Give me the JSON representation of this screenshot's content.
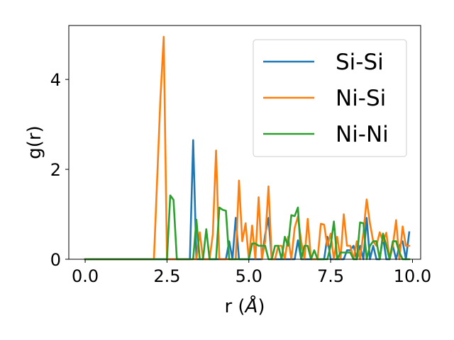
{
  "chart_data": {
    "type": "line",
    "xlabel": "r (Å)",
    "ylabel": "g(r)",
    "xlim": [
      -0.5,
      10.25
    ],
    "ylim": [
      0,
      5.2
    ],
    "xticks": [
      0.0,
      2.5,
      5.0,
      7.5,
      10.0
    ],
    "xtick_labels": [
      "0.0",
      "2.5",
      "5.0",
      "7.5",
      "10.0"
    ],
    "yticks": [
      0,
      2,
      4
    ],
    "ytick_labels": [
      "0",
      "2",
      "4"
    ],
    "grid": false,
    "legend_position": "top-right",
    "series": [
      {
        "name": "Si-Si",
        "color": "#1f77b4",
        "x": [
          0.0,
          3.0,
          3.1,
          3.2,
          3.3,
          3.4,
          3.5,
          3.6,
          4.3,
          4.4,
          4.5,
          4.6,
          4.7,
          5.4,
          5.5,
          5.6,
          5.7,
          5.8,
          6.4,
          6.5,
          6.6,
          6.7,
          6.8,
          7.3,
          7.4,
          7.5,
          7.6,
          7.7,
          7.8,
          7.9,
          8.0,
          8.1,
          8.2,
          8.3,
          8.4,
          8.5,
          8.6,
          8.7,
          8.8,
          8.9,
          9.0,
          9.1,
          9.2,
          9.3,
          9.4,
          9.5,
          9.6,
          9.7,
          9.8,
          9.9
        ],
        "y": [
          0.0,
          0.0,
          0.0,
          0.0,
          2.65,
          0.0,
          0.0,
          0.0,
          0.0,
          0.4,
          0.0,
          0.92,
          0.0,
          0.0,
          0.55,
          0.92,
          0.0,
          0.0,
          0.0,
          0.42,
          0.0,
          0.0,
          0.0,
          0.0,
          0.5,
          0.0,
          0.0,
          0.0,
          0.0,
          0.0,
          0.2,
          0.2,
          0.3,
          0.0,
          0.3,
          0.0,
          0.92,
          0.0,
          0.3,
          0.0,
          0.0,
          0.5,
          0.0,
          0.0,
          0.3,
          0.0,
          0.3,
          0.4,
          0.0,
          0.6
        ]
      },
      {
        "name": "Ni-Si",
        "color": "#ff7f0e",
        "x": [
          0.0,
          2.1,
          2.2,
          2.3,
          2.4,
          2.5,
          2.6,
          2.7,
          2.8,
          2.9,
          3.0,
          3.1,
          3.2,
          3.3,
          3.4,
          3.5,
          3.6,
          3.7,
          3.8,
          3.9,
          4.0,
          4.1,
          4.2,
          4.3,
          4.4,
          4.5,
          4.6,
          4.7,
          4.8,
          4.9,
          5.0,
          5.1,
          5.2,
          5.3,
          5.4,
          5.5,
          5.6,
          5.7,
          5.8,
          5.9,
          6.0,
          6.1,
          6.2,
          6.3,
          6.4,
          6.5,
          6.6,
          6.7,
          6.8,
          6.9,
          7.0,
          7.1,
          7.2,
          7.3,
          7.4,
          7.5,
          7.6,
          7.7,
          7.8,
          7.9,
          8.0,
          8.1,
          8.2,
          8.3,
          8.4,
          8.5,
          8.6,
          8.7,
          8.8,
          8.9,
          9.0,
          9.1,
          9.2,
          9.3,
          9.4,
          9.5,
          9.6,
          9.7,
          9.8,
          9.9
        ],
        "y": [
          0.0,
          0.0,
          1.8,
          3.6,
          4.95,
          0.0,
          0.0,
          0.0,
          0.0,
          0.0,
          0.0,
          0.0,
          0.0,
          0.0,
          0.0,
          0.6,
          0.0,
          0.0,
          0.0,
          0.55,
          2.42,
          0.0,
          0.0,
          0.0,
          0.0,
          0.0,
          0.0,
          1.75,
          0.4,
          0.8,
          0.0,
          0.75,
          0.0,
          1.38,
          0.0,
          0.4,
          1.62,
          0.0,
          0.0,
          0.3,
          0.3,
          0.0,
          0.5,
          0.0,
          0.7,
          0.95,
          0.4,
          0.0,
          0.9,
          0.0,
          0.0,
          0.0,
          0.79,
          0.77,
          0.3,
          0.57,
          0.0,
          0.5,
          0.0,
          1.0,
          0.3,
          0.3,
          0.0,
          0.4,
          0.0,
          0.6,
          1.33,
          0.8,
          0.4,
          0.3,
          0.6,
          0.4,
          0.59,
          0.0,
          0.3,
          0.87,
          0.0,
          0.73,
          0.3,
          0.3
        ]
      },
      {
        "name": "Ni-Ni",
        "color": "#2ca02c",
        "x": [
          0.0,
          2.5,
          2.6,
          2.7,
          2.8,
          2.9,
          3.0,
          3.1,
          3.2,
          3.3,
          3.4,
          3.5,
          3.6,
          3.7,
          3.8,
          3.9,
          4.0,
          4.1,
          4.2,
          4.3,
          4.4,
          4.5,
          4.6,
          4.7,
          4.8,
          4.9,
          5.0,
          5.1,
          5.2,
          5.3,
          5.4,
          5.5,
          5.6,
          5.7,
          5.8,
          5.9,
          6.0,
          6.1,
          6.2,
          6.3,
          6.4,
          6.5,
          6.6,
          6.7,
          6.8,
          6.9,
          7.0,
          7.1,
          7.2,
          7.3,
          7.4,
          7.5,
          7.6,
          7.7,
          7.8,
          7.9,
          8.0,
          8.1,
          8.2,
          8.3,
          8.4,
          8.5,
          8.6,
          8.7,
          8.8,
          8.9,
          9.0,
          9.1,
          9.2,
          9.3,
          9.4,
          9.5,
          9.6,
          9.7,
          9.8,
          9.9
        ],
        "y": [
          0.0,
          0.0,
          1.42,
          1.32,
          0.0,
          0.0,
          0.0,
          0.0,
          0.0,
          0.0,
          0.88,
          0.0,
          0.0,
          0.67,
          0.0,
          0.0,
          0.0,
          1.15,
          1.1,
          1.08,
          0.0,
          0.0,
          0.0,
          0.0,
          0.0,
          0.0,
          0.0,
          0.35,
          0.35,
          0.3,
          0.3,
          0.3,
          0.0,
          0.0,
          0.3,
          0.3,
          0.0,
          0.5,
          0.3,
          0.98,
          0.96,
          1.15,
          0.0,
          0.3,
          0.3,
          0.0,
          0.2,
          0.0,
          0.0,
          0.0,
          0.0,
          0.3,
          0.84,
          0.0,
          0.15,
          0.15,
          0.15,
          0.15,
          0.0,
          0.0,
          0.82,
          0.8,
          0.0,
          0.3,
          0.4,
          0.4,
          0.0,
          0.57,
          0.3,
          0.0,
          0.4,
          0.4,
          0.15,
          0.0,
          0.0,
          0.0
        ]
      }
    ]
  }
}
